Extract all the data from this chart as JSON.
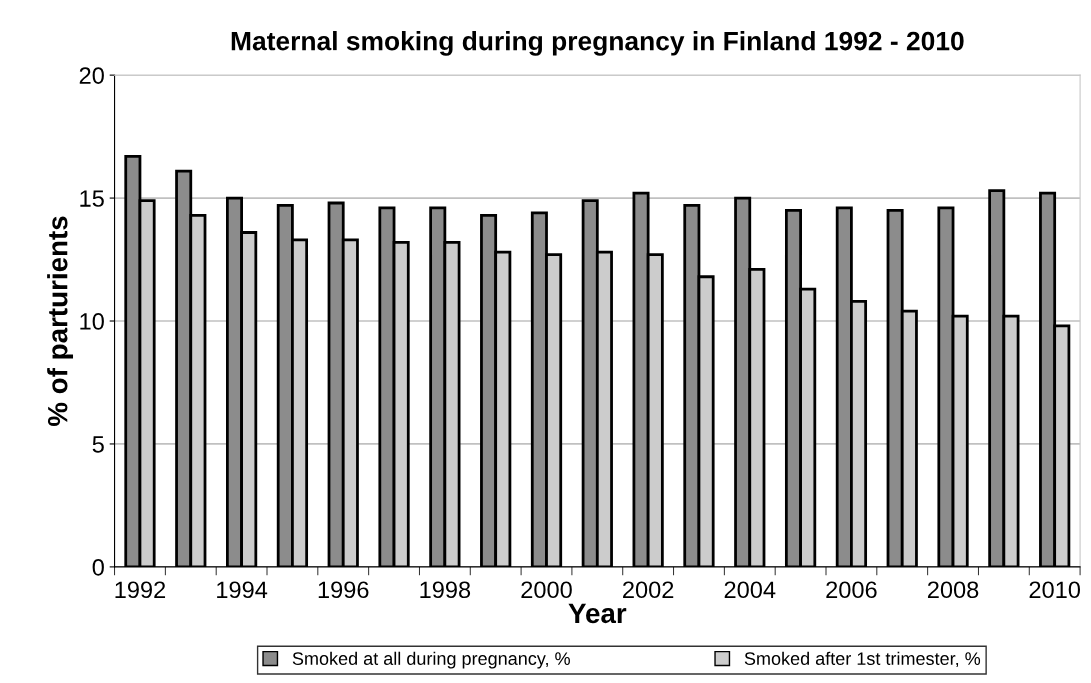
{
  "chart_data": {
    "type": "bar",
    "title": "Maternal smoking during pregnancy in Finland 1992 - 2010",
    "xlabel": "Year",
    "ylabel": "% of parturients",
    "categories": [
      "1992",
      null,
      "1994",
      null,
      "1996",
      null,
      "1998",
      null,
      "2000",
      null,
      "2002",
      null,
      "2004",
      null,
      "2006",
      null,
      "2008",
      null,
      "2010"
    ],
    "series": [
      {
        "name": "Smoked at all during pregnancy, %",
        "color": "#8c8c8c",
        "values": [
          16.7,
          16.1,
          15.0,
          14.7,
          14.8,
          14.6,
          14.6,
          14.3,
          14.4,
          14.9,
          15.2,
          14.7,
          15.0,
          14.5,
          14.6,
          14.5,
          14.6,
          15.3,
          15.2
        ]
      },
      {
        "name": "Smoked after 1st trimester, %",
        "color": "#cccccc",
        "values": [
          14.9,
          14.3,
          13.6,
          13.3,
          13.3,
          13.2,
          13.2,
          12.8,
          12.7,
          12.8,
          12.7,
          11.8,
          12.1,
          11.3,
          10.8,
          10.4,
          10.2,
          10.2,
          9.8
        ]
      }
    ],
    "ylim": [
      0,
      20
    ],
    "yticks": [
      0,
      5,
      10,
      15,
      20
    ],
    "grid": "y",
    "legend": "bottom"
  }
}
